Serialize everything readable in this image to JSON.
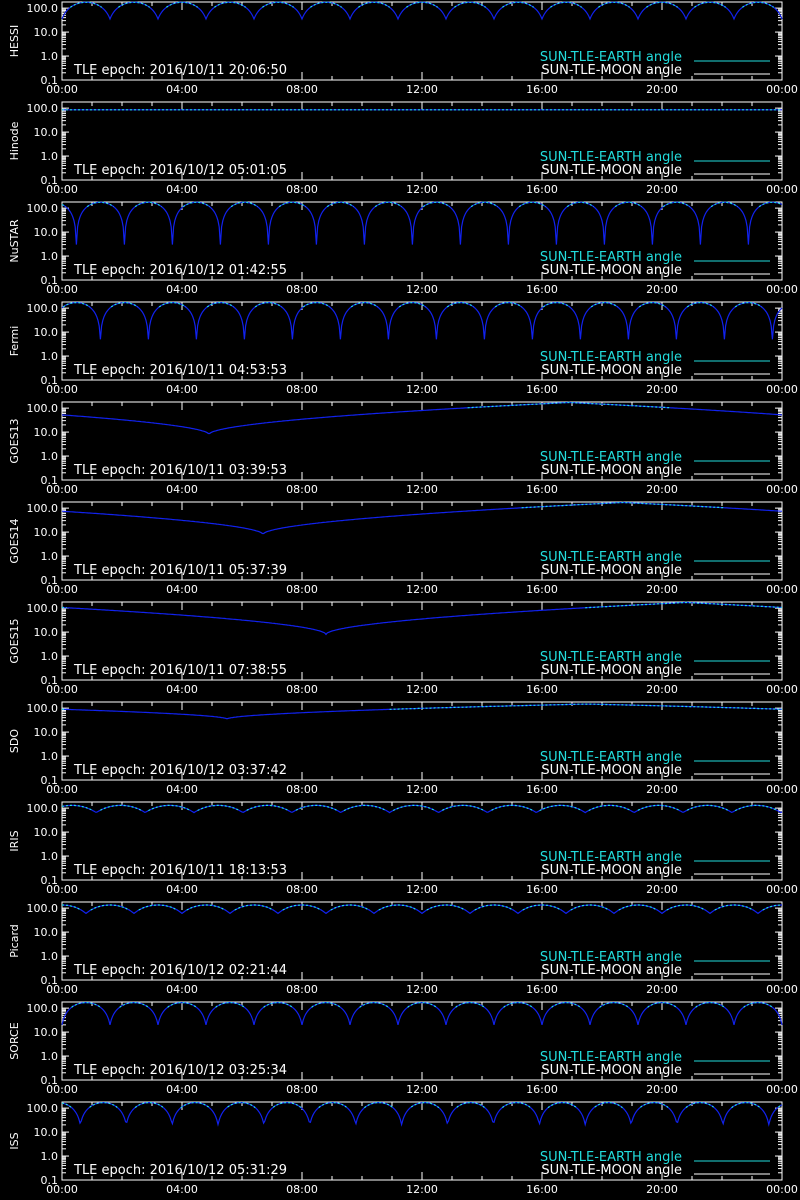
{
  "colors": {
    "background": "#000000",
    "axes": "#ffffff",
    "earth_angle": "#22dddd",
    "moon_angle": "#ffffff",
    "series_dark": "#1122ee"
  },
  "chart_data": [
    {
      "type": "line",
      "ylabel": "HESSI",
      "epoch_text": "TLE epoch: 2016/10/11 20:06:50",
      "x_ticks": [
        "00:00",
        "04:00",
        "08:00",
        "12:00",
        "16:00",
        "20:00",
        "00:00"
      ],
      "y_ticks": [
        "0.1",
        "1.0",
        "10.0",
        "100.0"
      ],
      "ylim": [
        0.1,
        180
      ],
      "y_scale": "log",
      "legend": {
        "earth": "SUN-TLE-EARTH angle",
        "moon": "SUN-TLE-MOON angle",
        "placement": "bottom-right"
      },
      "curve": {
        "kind": "periodic",
        "period_hours": 1.6,
        "min": 35,
        "max": 175,
        "phase": 0.0
      }
    },
    {
      "type": "line",
      "ylabel": "Hinode",
      "epoch_text": "TLE epoch: 2016/10/12 05:01:05",
      "x_ticks": [
        "00:00",
        "04:00",
        "08:00",
        "12:00",
        "16:00",
        "20:00",
        "00:00"
      ],
      "y_ticks": [
        "0.1",
        "1.0",
        "10.0",
        "100.0"
      ],
      "ylim": [
        0.1,
        180
      ],
      "y_scale": "log",
      "legend": {
        "earth": "SUN-TLE-EARTH angle",
        "moon": "SUN-TLE-MOON angle",
        "placement": "bottom-right"
      },
      "curve": {
        "kind": "flat",
        "value": 85
      }
    },
    {
      "type": "line",
      "ylabel": "NuSTAR",
      "epoch_text": "TLE epoch: 2016/10/12 01:42:55",
      "x_ticks": [
        "00:00",
        "04:00",
        "08:00",
        "12:00",
        "16:00",
        "20:00",
        "00:00"
      ],
      "y_ticks": [
        "0.1",
        "1.0",
        "10.0",
        "100.0"
      ],
      "ylim": [
        0.1,
        180
      ],
      "y_scale": "log",
      "legend": {
        "earth": "SUN-TLE-EARTH angle",
        "moon": "SUN-TLE-MOON angle",
        "placement": "bottom-right"
      },
      "curve": {
        "kind": "periodic",
        "period_hours": 1.6,
        "min": 3,
        "max": 175,
        "phase": 0.7
      }
    },
    {
      "type": "line",
      "ylabel": "Fermi",
      "epoch_text": "TLE epoch: 2016/10/11 04:53:53",
      "x_ticks": [
        "00:00",
        "04:00",
        "08:00",
        "12:00",
        "16:00",
        "20:00",
        "00:00"
      ],
      "y_ticks": [
        "0.1",
        "1.0",
        "10.0",
        "100.0"
      ],
      "ylim": [
        0.1,
        180
      ],
      "y_scale": "log",
      "legend": {
        "earth": "SUN-TLE-EARTH angle",
        "moon": "SUN-TLE-MOON angle",
        "placement": "bottom-right"
      },
      "curve": {
        "kind": "periodic",
        "period_hours": 1.6,
        "min": 5,
        "max": 170,
        "phase": 0.2
      }
    },
    {
      "type": "line",
      "ylabel": "GOES13",
      "epoch_text": "TLE epoch: 2016/10/11 03:39:53",
      "x_ticks": [
        "00:00",
        "04:00",
        "08:00",
        "12:00",
        "16:00",
        "20:00",
        "00:00"
      ],
      "y_ticks": [
        "0.1",
        "1.0",
        "10.0",
        "100.0"
      ],
      "ylim": [
        0.1,
        180
      ],
      "y_scale": "log",
      "legend": {
        "earth": "SUN-TLE-EARTH angle",
        "moon": "SUN-TLE-MOON angle",
        "placement": "bottom-right"
      },
      "curve": {
        "kind": "daily",
        "min_hour": 4.9,
        "min": 8,
        "max_hour": 16.9,
        "max": 172
      }
    },
    {
      "type": "line",
      "ylabel": "GOES14",
      "epoch_text": "TLE epoch: 2016/10/11 05:37:39",
      "x_ticks": [
        "00:00",
        "04:00",
        "08:00",
        "12:00",
        "16:00",
        "20:00",
        "00:00"
      ],
      "y_ticks": [
        "0.1",
        "1.0",
        "10.0",
        "100.0"
      ],
      "ylim": [
        0.1,
        180
      ],
      "y_scale": "log",
      "legend": {
        "earth": "SUN-TLE-EARTH angle",
        "moon": "SUN-TLE-MOON angle",
        "placement": "bottom-right"
      },
      "curve": {
        "kind": "daily",
        "min_hour": 6.7,
        "min": 8,
        "max_hour": 18.7,
        "max": 172
      }
    },
    {
      "type": "line",
      "ylabel": "GOES15",
      "epoch_text": "TLE epoch: 2016/10/11 07:38:55",
      "x_ticks": [
        "00:00",
        "04:00",
        "08:00",
        "12:00",
        "16:00",
        "20:00",
        "00:00"
      ],
      "y_ticks": [
        "0.1",
        "1.0",
        "10.0",
        "100.0"
      ],
      "ylim": [
        0.1,
        180
      ],
      "y_scale": "log",
      "legend": {
        "earth": "SUN-TLE-EARTH angle",
        "moon": "SUN-TLE-MOON angle",
        "placement": "bottom-right"
      },
      "curve": {
        "kind": "daily",
        "min_hour": 8.8,
        "min": 8,
        "max_hour": 20.8,
        "max": 172
      }
    },
    {
      "type": "line",
      "ylabel": "SDO",
      "epoch_text": "TLE epoch: 2016/10/12 03:37:42",
      "x_ticks": [
        "00:00",
        "04:00",
        "08:00",
        "12:00",
        "16:00",
        "20:00",
        "00:00"
      ],
      "y_ticks": [
        "0.1",
        "1.0",
        "10.0",
        "100.0"
      ],
      "ylim": [
        0.1,
        180
      ],
      "y_scale": "log",
      "legend": {
        "earth": "SUN-TLE-EARTH angle",
        "moon": "SUN-TLE-MOON angle",
        "placement": "bottom-right"
      },
      "curve": {
        "kind": "daily",
        "min_hour": 5.5,
        "min": 35,
        "max_hour": 17.5,
        "max": 148
      }
    },
    {
      "type": "line",
      "ylabel": "IRIS",
      "epoch_text": "TLE epoch: 2016/10/11 18:13:53",
      "x_ticks": [
        "00:00",
        "04:00",
        "08:00",
        "12:00",
        "16:00",
        "20:00",
        "00:00"
      ],
      "y_ticks": [
        "0.1",
        "1.0",
        "10.0",
        "100.0"
      ],
      "ylim": [
        0.1,
        180
      ],
      "y_scale": "log",
      "legend": {
        "earth": "SUN-TLE-EARTH angle",
        "moon": "SUN-TLE-MOON angle",
        "placement": "bottom-right"
      },
      "curve": {
        "kind": "periodic",
        "period_hours": 1.63,
        "min": 65,
        "max": 130,
        "phase": 0.3
      }
    },
    {
      "type": "line",
      "ylabel": "Picard",
      "epoch_text": "TLE epoch: 2016/10/12 02:21:44",
      "x_ticks": [
        "00:00",
        "04:00",
        "08:00",
        "12:00",
        "16:00",
        "20:00",
        "00:00"
      ],
      "y_ticks": [
        "0.1",
        "1.0",
        "10.0",
        "100.0"
      ],
      "ylim": [
        0.1,
        180
      ],
      "y_scale": "log",
      "legend": {
        "earth": "SUN-TLE-EARTH angle",
        "moon": "SUN-TLE-MOON angle",
        "placement": "bottom-right"
      },
      "curve": {
        "kind": "periodic",
        "period_hours": 1.6,
        "min": 60,
        "max": 135,
        "phase": 0.5
      }
    },
    {
      "type": "line",
      "ylabel": "SORCE",
      "epoch_text": "TLE epoch: 2016/10/12 03:25:34",
      "x_ticks": [
        "00:00",
        "04:00",
        "08:00",
        "12:00",
        "16:00",
        "20:00",
        "00:00"
      ],
      "y_ticks": [
        "0.1",
        "1.0",
        "10.0",
        "100.0"
      ],
      "ylim": [
        0.1,
        180
      ],
      "y_scale": "log",
      "legend": {
        "earth": "SUN-TLE-EARTH angle",
        "moon": "SUN-TLE-MOON angle",
        "placement": "bottom-right"
      },
      "curve": {
        "kind": "periodic",
        "period_hours": 1.6,
        "min": 20,
        "max": 170,
        "phase": 1.0
      }
    },
    {
      "type": "line",
      "ylabel": "ISS",
      "epoch_text": "TLE epoch: 2016/10/12 05:31:29",
      "x_ticks": [
        "00:00",
        "04:00",
        "08:00",
        "12:00",
        "16:00",
        "20:00",
        "00:00"
      ],
      "y_ticks": [
        "0.1",
        "1.0",
        "10.0",
        "100.0"
      ],
      "ylim": [
        0.1,
        180
      ],
      "y_scale": "log",
      "legend": {
        "earth": "SUN-TLE-EARTH angle",
        "moon": "SUN-TLE-MOON angle",
        "placement": "bottom-right"
      },
      "curve": {
        "kind": "periodic",
        "period_hours": 1.53,
        "min": 20,
        "max": 170,
        "phase": 0.6
      }
    }
  ]
}
